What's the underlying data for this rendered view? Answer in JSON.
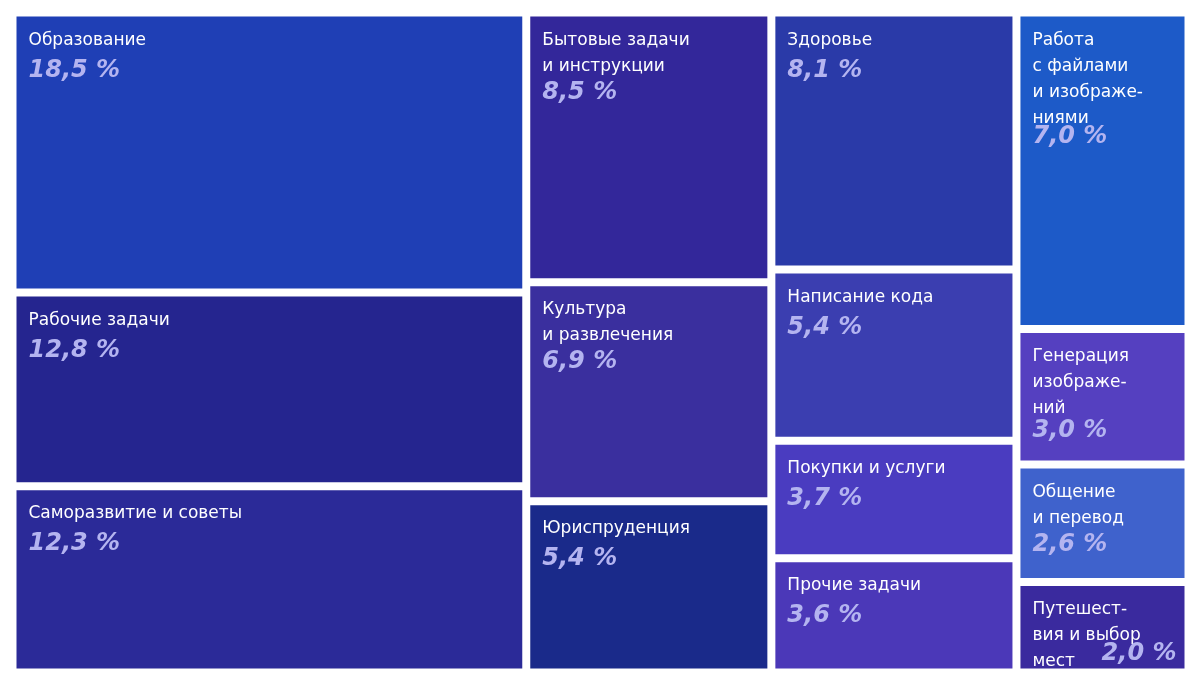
{
  "chart_data": {
    "type": "other",
    "categories": [
      "Образование",
      "Рабочие задачи",
      "Саморазвитие и советы",
      "Бытовые задачи\nи инструкции",
      "Культура\nи развлечения",
      "Юриспруденция",
      "Здоровье",
      "Написание кода",
      "Покупки и услуги",
      "Прочие задачи",
      "Работа\nс файлами\nи изображе-\nниями",
      "Генерация\nизображе-\nний",
      "Общение\nи перевод",
      "Путешест-\nвия и выбор\nмест"
    ],
    "values": [
      18.5,
      12.8,
      12.3,
      8.5,
      6.9,
      5.4,
      8.1,
      5.4,
      3.7,
      3.6,
      7.0,
      3.0,
      2.6,
      2.0
    ],
    "value_labels": [
      "18,5 %",
      "12,8 %",
      "12,3 %",
      "8,5 %",
      "6,9 %",
      "5,4 %",
      "8,1 %",
      "5,4 %",
      "3,7 %",
      "3,6 %",
      "7,0 %",
      "3,0 %",
      "2,6 %",
      "2,0 %"
    ],
    "colors": [
      "#1f3fb5",
      "#25258f",
      "#2b2a98",
      "#33279a",
      "#3a2f9e",
      "#1a2a8a",
      "#2a3aa8",
      "#3b3eb0",
      "#4a3cc0",
      "#4b38b8",
      "#1d5ac8",
      "#5540c0",
      "#3f62cc",
      "#3a2a9e"
    ]
  }
}
